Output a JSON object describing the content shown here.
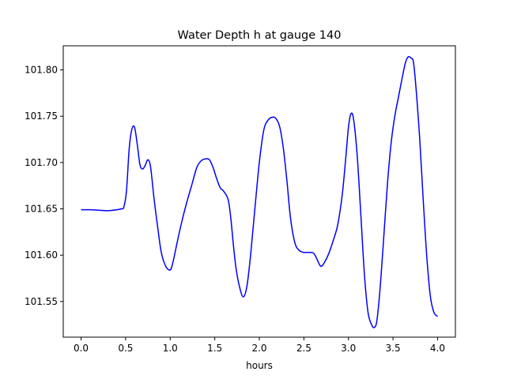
{
  "chart_data": {
    "type": "line",
    "title": "Water Depth h at gauge 140",
    "xlabel": "hours",
    "ylabel": "",
    "xlim": [
      -0.2,
      4.2
    ],
    "ylim": [
      101.5115,
      101.826
    ],
    "xticks": [
      0.0,
      0.5,
      1.0,
      1.5,
      2.0,
      2.5,
      3.0,
      3.5,
      4.0
    ],
    "xtick_labels": [
      "0.0",
      "0.5",
      "1.0",
      "1.5",
      "2.0",
      "2.5",
      "3.0",
      "3.5",
      "4.0"
    ],
    "yticks": [
      101.55,
      101.6,
      101.65,
      101.7,
      101.75,
      101.8
    ],
    "ytick_labels": [
      "101.55",
      "101.60",
      "101.65",
      "101.70",
      "101.75",
      "101.80"
    ],
    "grid": false,
    "line_color": "#0000ff",
    "series": [
      {
        "name": "",
        "x": [
          0.0,
          0.1,
          0.2,
          0.3,
          0.4,
          0.45,
          0.48,
          0.51,
          0.54,
          0.57,
          0.6,
          0.63,
          0.66,
          0.69,
          0.72,
          0.75,
          0.78,
          0.82,
          0.86,
          0.9,
          0.95,
          1.0,
          1.03,
          1.07,
          1.12,
          1.18,
          1.24,
          1.3,
          1.35,
          1.4,
          1.44,
          1.48,
          1.52,
          1.56,
          1.6,
          1.65,
          1.68,
          1.71,
          1.74,
          1.78,
          1.82,
          1.86,
          1.9,
          1.95,
          2.0,
          2.05,
          2.1,
          2.15,
          2.19,
          2.23,
          2.27,
          2.31,
          2.35,
          2.4,
          2.45,
          2.5,
          2.55,
          2.61,
          2.65,
          2.69,
          2.73,
          2.78,
          2.83,
          2.88,
          2.93,
          2.97,
          3.0,
          3.03,
          3.06,
          3.1,
          3.14,
          3.18,
          3.22,
          3.26,
          3.29,
          3.32,
          3.36,
          3.4,
          3.44,
          3.48,
          3.52,
          3.56,
          3.6,
          3.64,
          3.67,
          3.7,
          3.73,
          3.76,
          3.8,
          3.84,
          3.88,
          3.92,
          3.96,
          4.0
        ],
        "y": [
          101.649,
          101.649,
          101.6485,
          101.648,
          101.649,
          101.65,
          101.652,
          101.67,
          101.715,
          101.736,
          101.738,
          101.72,
          101.698,
          101.693,
          101.697,
          101.703,
          101.695,
          101.66,
          101.63,
          101.603,
          101.588,
          101.584,
          101.592,
          101.61,
          101.632,
          101.655,
          101.675,
          101.695,
          101.702,
          101.704,
          101.703,
          101.695,
          101.683,
          101.673,
          101.669,
          101.66,
          101.64,
          101.61,
          101.585,
          101.565,
          101.555,
          101.566,
          101.598,
          101.65,
          101.7,
          101.735,
          101.746,
          101.749,
          101.747,
          101.738,
          101.715,
          101.68,
          101.64,
          101.613,
          101.605,
          101.603,
          101.603,
          101.602,
          101.595,
          101.588,
          101.592,
          101.602,
          101.616,
          101.633,
          101.665,
          101.705,
          101.738,
          101.753,
          101.745,
          101.705,
          101.642,
          101.578,
          101.538,
          101.525,
          101.522,
          101.53,
          101.57,
          101.625,
          101.68,
          101.722,
          101.75,
          101.77,
          101.79,
          101.808,
          101.814,
          101.813,
          101.808,
          101.778,
          101.725,
          101.658,
          101.597,
          101.555,
          101.538,
          101.534
        ]
      }
    ]
  }
}
